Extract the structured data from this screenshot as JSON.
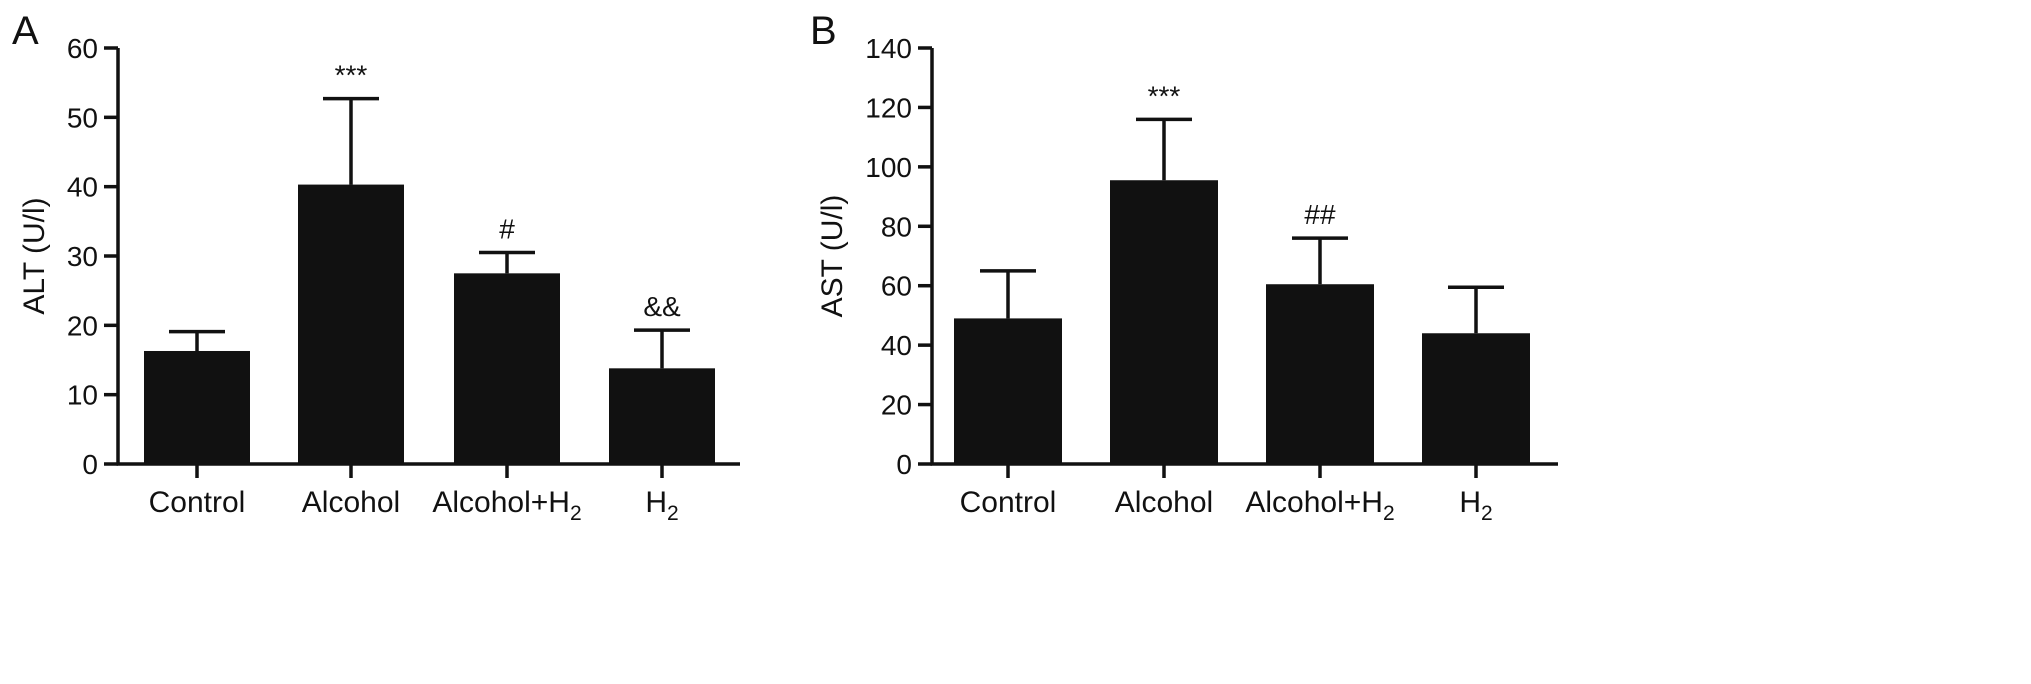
{
  "colors": {
    "bar": "#111111",
    "axis": "#111111",
    "background": "#ffffff"
  },
  "chart_data": [
    {
      "panel_label": "A",
      "type": "bar",
      "ylabel": "ALT (U/l)",
      "ylim": [
        0,
        60
      ],
      "yticks": [
        0,
        10,
        20,
        30,
        40,
        50,
        60
      ],
      "categories": [
        {
          "base": "Control",
          "sub": ""
        },
        {
          "base": "Alcohol",
          "sub": ""
        },
        {
          "base": "Alcohol+H",
          "sub": "2"
        },
        {
          "base": "H",
          "sub": "2"
        }
      ],
      "values": [
        16.3,
        40.3,
        27.5,
        13.8
      ],
      "errors": [
        2.8,
        12.4,
        3.0,
        5.5
      ],
      "annotations": [
        "",
        "***",
        "#",
        "&&"
      ],
      "grid": false,
      "legend": "none"
    },
    {
      "panel_label": "B",
      "type": "bar",
      "ylabel": "AST (U/l)",
      "ylim": [
        0,
        140
      ],
      "yticks": [
        0,
        20,
        40,
        60,
        80,
        100,
        120,
        140
      ],
      "categories": [
        {
          "base": "Control",
          "sub": ""
        },
        {
          "base": "Alcohol",
          "sub": ""
        },
        {
          "base": "Alcohol+H",
          "sub": "2"
        },
        {
          "base": "H",
          "sub": "2"
        }
      ],
      "values": [
        49,
        95.5,
        60.5,
        44
      ],
      "errors": [
        16,
        20.5,
        15.5,
        15.5
      ],
      "annotations": [
        "",
        "***",
        "##",
        ""
      ],
      "grid": false,
      "legend": "none"
    }
  ]
}
